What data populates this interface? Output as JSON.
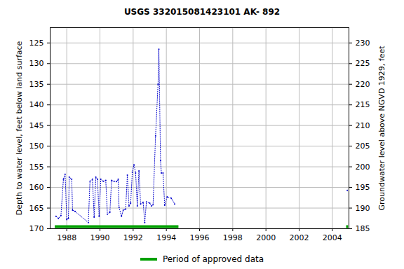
{
  "chart_data": {
    "type": "line",
    "title": "USGS 332015081423101 AK- 892",
    "y_label": "Depth to water level, feet below land surface",
    "y2_label": "Groundwater level above NGVD 1929, feet",
    "x": [
      1987.35,
      1987.5,
      1987.65,
      1987.8,
      1987.9,
      1988.0,
      1988.1,
      1988.15,
      1988.3,
      1988.35,
      1988.5,
      1989.3,
      1989.4,
      1989.55,
      1989.65,
      1989.75,
      1989.85,
      1989.95,
      1990.05,
      1990.2,
      1990.35,
      1990.45,
      1990.6,
      1990.7,
      1990.85,
      1991.0,
      1991.1,
      1991.15,
      1991.3,
      1991.4,
      1991.55,
      1991.65,
      1991.75,
      1991.85,
      1991.95,
      1992.05,
      1992.15,
      1992.25,
      1992.35,
      1992.45,
      1992.6,
      1992.7,
      1992.8,
      1993.0,
      1993.1,
      1993.2,
      1993.35,
      1993.5,
      1993.55,
      1993.65,
      1993.7,
      1993.8,
      1993.9,
      1994.05,
      1994.3,
      1994.5,
      2000,
      2004.9
    ],
    "series": [
      {
        "color": "#0000cc",
        "marker": "dot",
        "line_style": "dotted",
        "values": [
          167.0,
          167.5,
          166.8,
          158.0,
          156.8,
          167.8,
          167.5,
          157.5,
          158.0,
          165.5,
          165.8,
          168.5,
          158.5,
          158.0,
          167.2,
          157.5,
          158.0,
          167.0,
          158.0,
          158.5,
          158.3,
          166.5,
          166.0,
          158.3,
          158.5,
          158.6,
          158.0,
          164.8,
          167.0,
          165.5,
          165.3,
          157.0,
          164.5,
          163.8,
          156.3,
          154.5,
          156.5,
          164.5,
          156.0,
          164.0,
          163.6,
          168.5,
          163.5,
          163.8,
          164.5,
          164.2,
          147.5,
          135.0,
          126.5,
          153.5,
          156.5,
          156.5,
          164.3,
          162.3,
          162.6,
          164.0,
          null,
          160.7
        ]
      }
    ],
    "approved_periods": {
      "name": "Period of approved data",
      "color": "#00a000",
      "ranges": [
        [
          1987.3,
          1994.75
        ],
        [
          2004.85,
          2004.97
        ]
      ]
    },
    "legend": "bottom",
    "xlim": [
      1987,
      2005
    ],
    "xticks": [
      1988,
      1990,
      1992,
      1994,
      1996,
      1998,
      2000,
      2002,
      2004
    ],
    "ylim": [
      170,
      121.3
    ],
    "yticks": [
      125,
      130,
      135,
      140,
      145,
      150,
      155,
      160,
      165,
      170
    ],
    "y2lim": [
      185,
      233.7
    ],
    "y2ticks": [
      185,
      190,
      195,
      200,
      205,
      210,
      215,
      220,
      225,
      230
    ],
    "grid": true
  }
}
